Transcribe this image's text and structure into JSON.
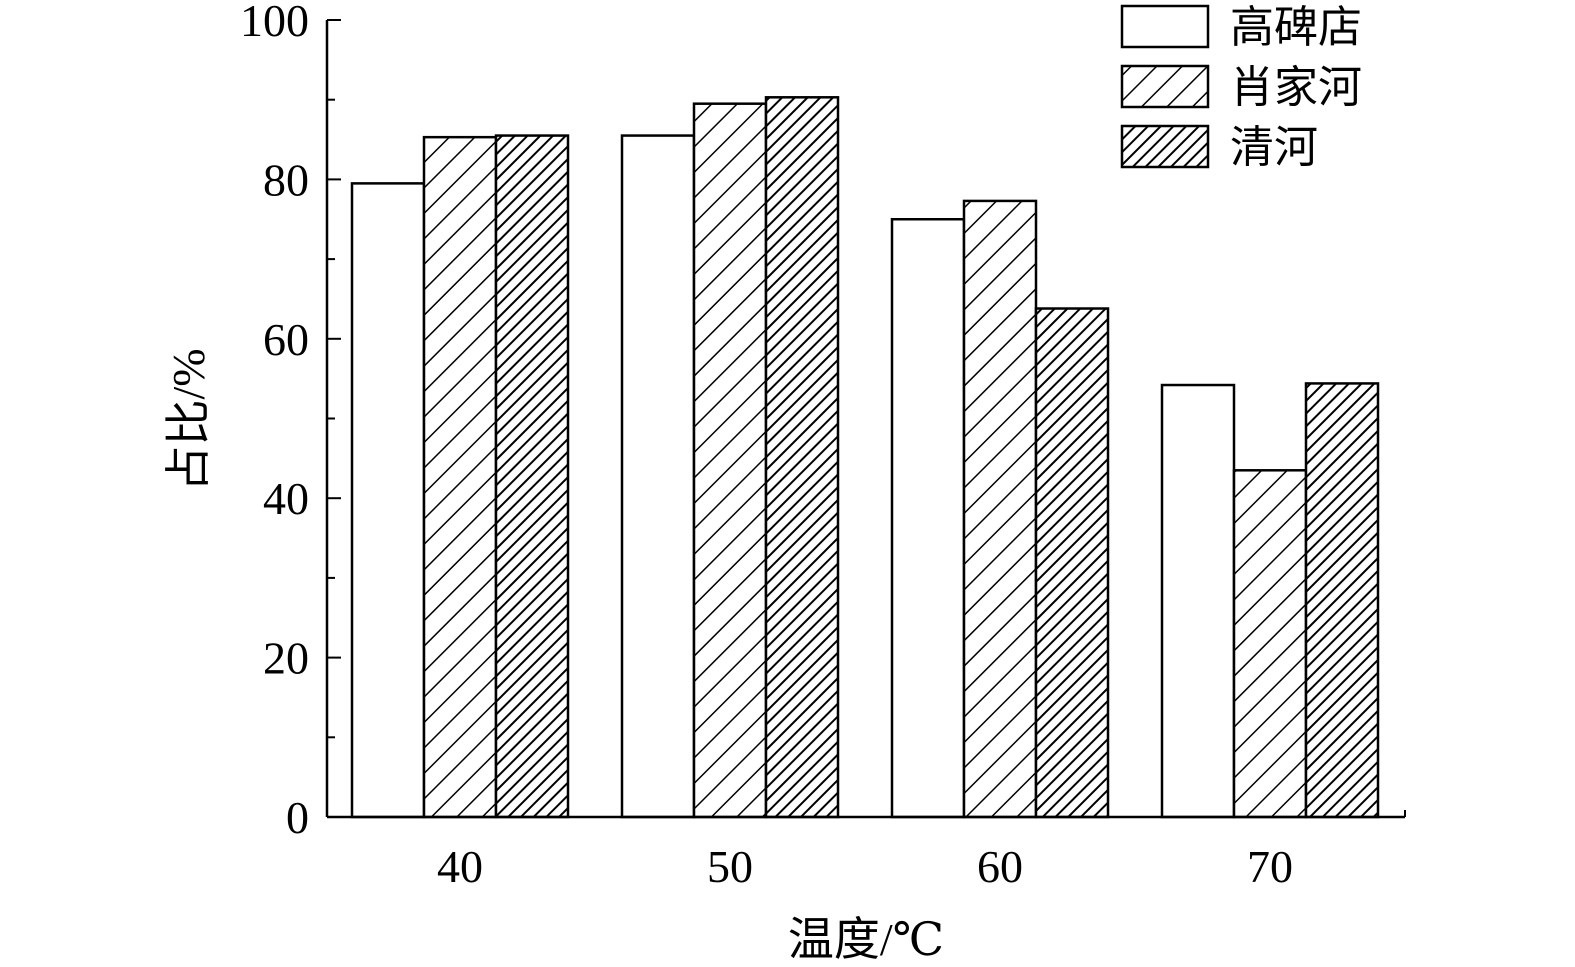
{
  "chart_data": {
    "type": "bar",
    "categories": [
      "40",
      "50",
      "60",
      "70"
    ],
    "series": [
      {
        "name": "高碑店",
        "values": [
          79.5,
          85.5,
          75.0,
          54.2
        ],
        "pattern": "none"
      },
      {
        "name": "肖家河",
        "values": [
          85.3,
          89.5,
          77.3,
          43.5
        ],
        "pattern": "sparse-hatch"
      },
      {
        "name": "清河",
        "values": [
          85.5,
          90.3,
          63.8,
          54.4
        ],
        "pattern": "dense-hatch"
      }
    ],
    "xlabel": "温度/℃",
    "ylabel": "占比/%",
    "ylim": [
      0,
      100
    ],
    "yticks": [
      "0",
      "20",
      "40",
      "60",
      "80",
      "100"
    ],
    "legend_position": "top-right",
    "grid": false,
    "colors": {
      "bar_fill": "#ffffff",
      "outline": "#000000"
    }
  }
}
